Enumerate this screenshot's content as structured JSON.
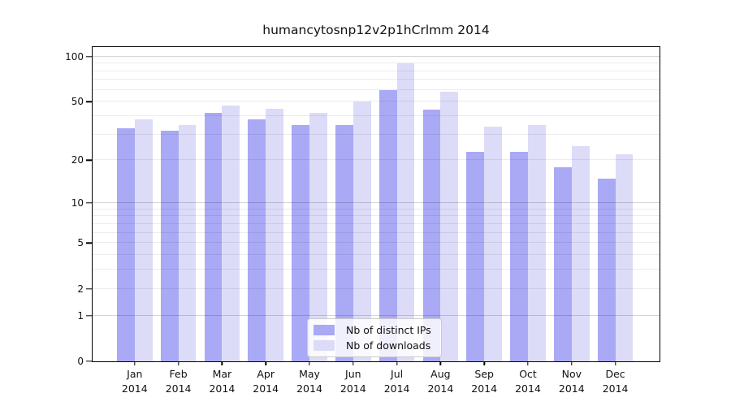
{
  "chart_data": {
    "type": "bar",
    "title": "humancytosnp12v2p1hCrlmm 2014",
    "categories": [
      "Jan",
      "Feb",
      "Mar",
      "Apr",
      "May",
      "Jun",
      "Jul",
      "Aug",
      "Sep",
      "Oct",
      "Nov",
      "Dec"
    ],
    "category_year": "2014",
    "series": [
      {
        "name": "Nb of distinct IPs",
        "color": "#a9a9f5",
        "values": [
          33,
          32,
          42,
          38,
          35,
          35,
          60,
          44,
          23,
          23,
          18,
          15
        ]
      },
      {
        "name": "Nb of downloads",
        "color": "#dcdcf8",
        "values": [
          38,
          35,
          47,
          45,
          42,
          50,
          90,
          58,
          34,
          35,
          25,
          22
        ]
      }
    ],
    "xlabel": "",
    "ylabel": "",
    "y_ticks": [
      0,
      1,
      2,
      5,
      10,
      20,
      50,
      100
    ],
    "y_minor_gridlines": [
      2,
      3,
      4,
      5,
      6,
      7,
      8,
      9,
      20,
      30,
      40,
      50,
      60,
      70,
      80,
      90
    ],
    "y_major_gridlines": [
      1,
      10,
      100
    ],
    "y_scale": "log10(1+x)",
    "ylim": [
      0,
      100
    ],
    "grid": true,
    "legend_position": "bottom-center",
    "colors": {
      "grid_minor": "rgba(0,0,0,0.075)",
      "grid_major": "rgba(0,0,0,0.16)",
      "axis": "#000000",
      "text": "#111111",
      "legend_border": "#cccccc",
      "background": "#ffffff"
    }
  }
}
